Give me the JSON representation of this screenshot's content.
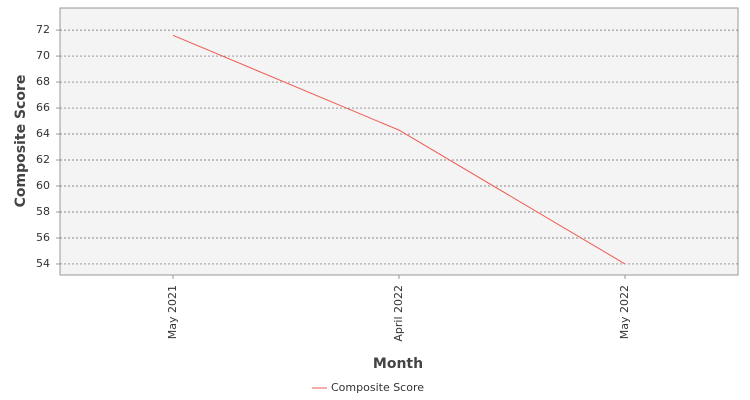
{
  "chart_data": {
    "type": "line",
    "x_label": "Month",
    "y_label": "Composite Score",
    "categories": [
      "May 2021",
      "April 2022",
      "May 2022"
    ],
    "series": [
      {
        "name": "Composite Score",
        "color": "#f05a50",
        "values": [
          71.6,
          64.3,
          54.0
        ]
      }
    ],
    "ylim": [
      53.15,
      73.7
    ],
    "yticks": [
      54,
      56,
      58,
      60,
      62,
      64,
      66,
      68,
      70,
      72
    ],
    "grid": true
  }
}
